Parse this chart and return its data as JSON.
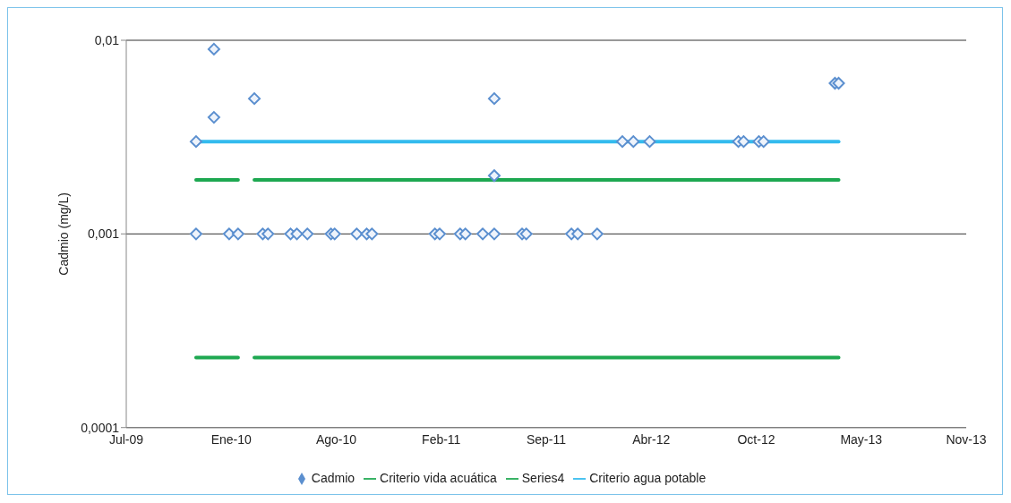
{
  "chart_data": {
    "type": "scatter",
    "ylabel": "Cadmio (mg/L)",
    "log": true,
    "grid": "y",
    "legend": "bottom",
    "xlim": [
      "2009-07-06",
      "2013-11-22"
    ],
    "xticks": [
      {
        "value": "2009-07-06",
        "label": "Jul-09"
      },
      {
        "value": "2010-01-22",
        "label": "Ene-10"
      },
      {
        "value": "2010-08-10",
        "label": "Ago-10"
      },
      {
        "value": "2011-02-26",
        "label": "Feb-11"
      },
      {
        "value": "2011-09-14",
        "label": "Sep-11"
      },
      {
        "value": "2012-04-01",
        "label": "Abr-12"
      },
      {
        "value": "2012-10-18",
        "label": "Oct-12"
      },
      {
        "value": "2013-05-06",
        "label": "May-13"
      },
      {
        "value": "2013-11-22",
        "label": "Nov-13"
      }
    ],
    "ylim": [
      0.0001,
      0.01
    ],
    "yticks": [
      {
        "value": 0.0001,
        "label": "0,0001"
      },
      {
        "value": 0.001,
        "label": "0,001"
      },
      {
        "value": 0.01,
        "label": "0,01"
      }
    ],
    "series": [
      {
        "name": "Cadmio",
        "marker": "diamond",
        "color": "#5b8fcf",
        "x": [
          "2009-11-16",
          "2009-11-16",
          "2009-12-20",
          "2009-12-20",
          "2010-01-18",
          "2010-02-04",
          "2010-03-07",
          "2010-03-23",
          "2010-04-02",
          "2010-05-15",
          "2010-05-27",
          "2010-06-16",
          "2010-07-31",
          "2010-08-07",
          "2010-09-18",
          "2010-10-07",
          "2010-10-17",
          "2011-02-14",
          "2011-02-23",
          "2011-04-03",
          "2011-04-13",
          "2011-05-16",
          "2011-06-07",
          "2011-06-07",
          "2011-06-07",
          "2011-07-30",
          "2011-08-07",
          "2011-11-01",
          "2011-11-13",
          "2011-12-20",
          "2012-02-06",
          "2012-02-27",
          "2012-03-29",
          "2012-09-14",
          "2012-09-24",
          "2012-10-23",
          "2012-11-01",
          "2013-03-17",
          "2013-03-24"
        ],
        "values": [
          0.003,
          0.001,
          0.009,
          0.004,
          0.001,
          0.001,
          0.005,
          0.001,
          0.001,
          0.001,
          0.001,
          0.001,
          0.001,
          0.001,
          0.001,
          0.001,
          0.001,
          0.001,
          0.001,
          0.001,
          0.001,
          0.001,
          0.001,
          0.005,
          0.002,
          0.001,
          0.001,
          0.001,
          0.001,
          0.001,
          0.003,
          0.003,
          0.003,
          0.003,
          0.003,
          0.003,
          0.003,
          0.006,
          0.006
        ]
      },
      {
        "name": "Criterio vida acuática",
        "type": "line",
        "color": "#1ea851",
        "x": [
          "2009-11-16",
          "2010-02-04",
          "2010-02-20",
          "2010-03-07",
          "2013-03-24"
        ],
        "values": [
          0.0019,
          0.0019,
          null,
          0.0019,
          0.0019
        ]
      },
      {
        "name": "Series4",
        "type": "line",
        "color": "#1ea851",
        "x": [
          "2009-11-16",
          "2010-02-04",
          "2010-02-20",
          "2010-03-07",
          "2013-03-24"
        ],
        "values": [
          0.00023,
          0.00023,
          null,
          0.00023,
          0.00023
        ]
      },
      {
        "name": "Criterio agua potable",
        "type": "line",
        "color": "#33bbee",
        "x": [
          "2009-11-16",
          "2013-03-24"
        ],
        "values": [
          0.003,
          0.003
        ]
      }
    ]
  }
}
